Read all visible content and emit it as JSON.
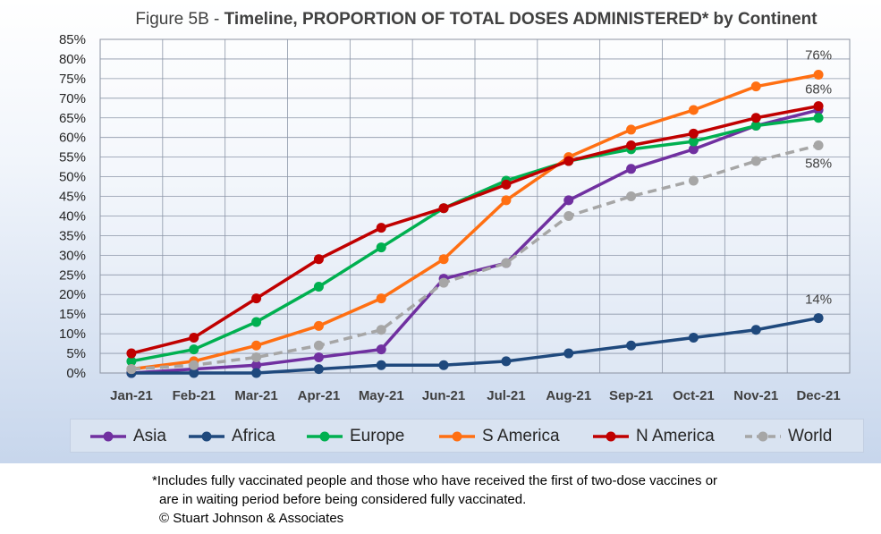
{
  "figure": {
    "prefix": "Figure 5B - ",
    "title_bold": "Timeline, PROPORTION OF TOTAL DOSES ADMINISTERED* by Continent"
  },
  "chart_data": {
    "type": "line",
    "title": "Figure 5B - Timeline, PROPORTION OF TOTAL DOSES ADMINISTERED* by Continent",
    "categories": [
      "Jan-21",
      "Feb-21",
      "Mar-21",
      "Apr-21",
      "May-21",
      "Jun-21",
      "Jul-21",
      "Aug-21",
      "Sep-21",
      "Oct-21",
      "Nov-21",
      "Dec-21"
    ],
    "y_ticks": [
      "0%",
      "5%",
      "10%",
      "15%",
      "20%",
      "25%",
      "30%",
      "35%",
      "40%",
      "45%",
      "50%",
      "55%",
      "60%",
      "65%",
      "70%",
      "75%",
      "80%",
      "85%"
    ],
    "ylim": [
      0,
      85
    ],
    "y_unit": "%",
    "grid": true,
    "legend_position": "bottom",
    "series": [
      {
        "name": "Asia",
        "color": "#7030a0",
        "dashed": false,
        "values": [
          0,
          1,
          2,
          4,
          6,
          24,
          28,
          44,
          52,
          57,
          63,
          67
        ]
      },
      {
        "name": "Africa",
        "color": "#1f497d",
        "dashed": false,
        "values": [
          0,
          0,
          0,
          1,
          2,
          2,
          3,
          5,
          7,
          9,
          11,
          14
        ]
      },
      {
        "name": "Europe",
        "color": "#00b050",
        "dashed": false,
        "values": [
          3,
          6,
          13,
          22,
          32,
          42,
          49,
          54,
          57,
          59,
          63,
          65
        ]
      },
      {
        "name": "S America",
        "color": "#ff6f12",
        "dashed": false,
        "values": [
          1,
          3,
          7,
          12,
          19,
          29,
          44,
          55,
          62,
          67,
          73,
          76
        ]
      },
      {
        "name": "N America",
        "color": "#c00000",
        "dashed": false,
        "values": [
          5,
          9,
          19,
          29,
          37,
          42,
          48,
          54,
          58,
          61,
          65,
          68
        ]
      },
      {
        "name": "World",
        "color": "#a6a6a6",
        "dashed": true,
        "values": [
          1,
          2,
          4,
          7,
          11,
          23,
          28,
          40,
          45,
          49,
          54,
          58
        ]
      }
    ],
    "annotations": [
      {
        "text": "76%",
        "category": "Dec-21",
        "value": 76
      },
      {
        "text": "68%",
        "category": "Dec-21",
        "value": 68
      },
      {
        "text": "58%",
        "category": "Dec-21",
        "value": 58
      },
      {
        "text": "14%",
        "category": "Dec-21",
        "value": 14
      }
    ]
  },
  "footnote": {
    "line1": "*Includes fully vaccinated people and those who have received the first of two-dose vaccines or",
    "line2": "are in waiting period before being considered fully vaccinated.",
    "line3": "© Stuart Johnson & Associates"
  }
}
